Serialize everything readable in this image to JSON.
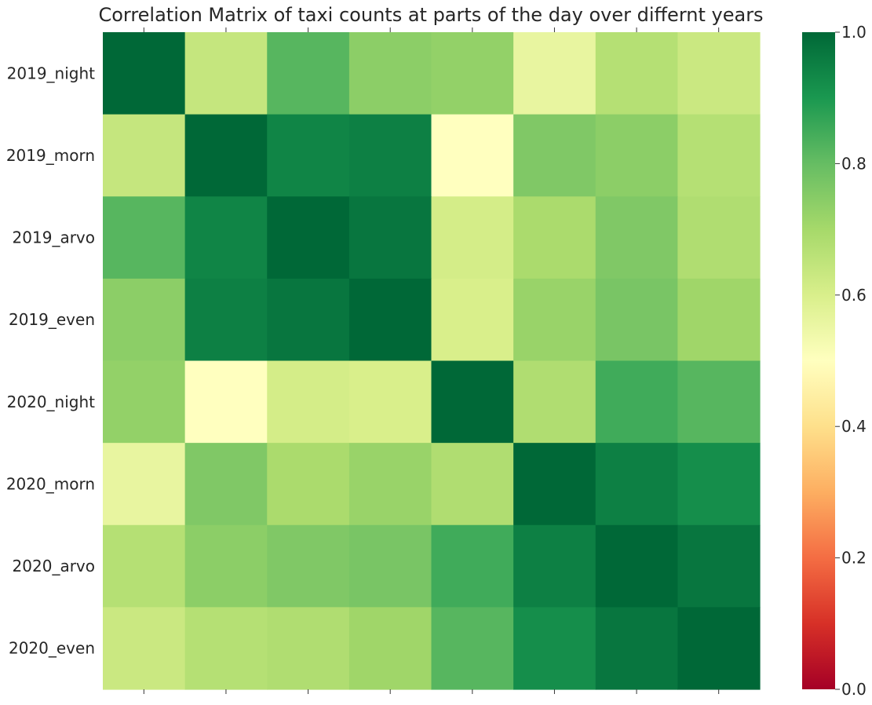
{
  "chart_data": {
    "type": "heatmap",
    "title": "Correlation Matrix of taxi counts at parts of the day over differnt years",
    "row_labels": [
      "2019_night",
      "2019_morn",
      "2019_arvo",
      "2019_even",
      "2020_night",
      "2020_morn",
      "2020_arvo",
      "2020_even"
    ],
    "column_labels": [],
    "values": [
      [
        1.0,
        0.64,
        0.82,
        0.74,
        0.73,
        0.56,
        0.67,
        0.63
      ],
      [
        0.64,
        1.0,
        0.94,
        0.95,
        0.5,
        0.76,
        0.74,
        0.67
      ],
      [
        0.82,
        0.94,
        1.0,
        0.97,
        0.61,
        0.69,
        0.76,
        0.68
      ],
      [
        0.74,
        0.95,
        0.97,
        1.0,
        0.6,
        0.72,
        0.77,
        0.71
      ],
      [
        0.73,
        0.5,
        0.61,
        0.6,
        1.0,
        0.68,
        0.85,
        0.82
      ],
      [
        0.56,
        0.76,
        0.69,
        0.72,
        0.68,
        1.0,
        0.95,
        0.92
      ],
      [
        0.67,
        0.74,
        0.76,
        0.77,
        0.85,
        0.95,
        1.0,
        0.97
      ],
      [
        0.63,
        0.67,
        0.68,
        0.71,
        0.82,
        0.92,
        0.97,
        1.0
      ]
    ],
    "colormap": "RdYlGn",
    "colorbar": {
      "range": [
        0.0,
        1.0
      ],
      "ticks": [
        0.0,
        0.2,
        0.4,
        0.6,
        0.8,
        1.0
      ],
      "tick_labels": [
        "0.0",
        "0.2",
        "0.4",
        "0.6",
        "0.8",
        "1.0"
      ]
    },
    "grid": false,
    "column_ticks_position": "top-and-bottom, unlabeled"
  }
}
